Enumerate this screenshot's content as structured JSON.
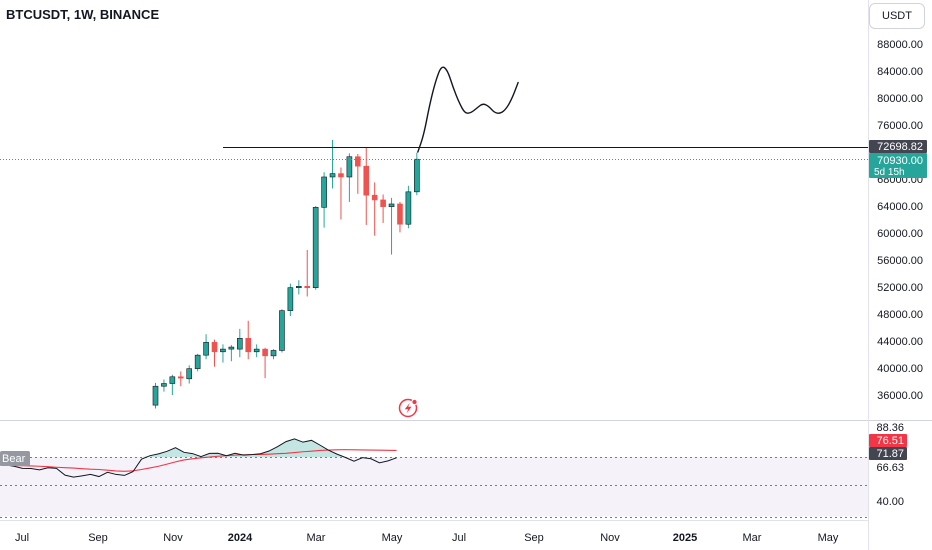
{
  "header": {
    "symbol": "BTCUSDT, 1W, BINANCE",
    "currency_button": "USDT"
  },
  "price_axis": {
    "ticks": [
      "88000.00",
      "84000.00",
      "80000.00",
      "76000.00",
      "68000.00",
      "64000.00",
      "60000.00",
      "56000.00",
      "52000.00",
      "48000.00",
      "44000.00",
      "40000.00",
      "36000.00"
    ]
  },
  "labels": {
    "level_line": "72698.82",
    "last_price": "70930.00",
    "countdown": "5d 15h"
  },
  "oscillator": {
    "pane_label": "Bear",
    "axis_ticks": [
      "88.36",
      "66.63",
      "40.00"
    ],
    "labels": [
      "76.51",
      "71.87"
    ]
  },
  "time_axis": {
    "labels": [
      "Jul",
      "Sep",
      "Nov",
      "2024",
      "Mar",
      "May",
      "Jul",
      "Sep",
      "Nov",
      "2025",
      "Mar",
      "May"
    ]
  },
  "colors": {
    "up": "#26a69a",
    "down": "#ef5350",
    "level_line": "#131722",
    "oscillator_line": "#131722",
    "oscillator_signal": "#f23645",
    "oscillator_band": "#7e57c2"
  },
  "chart_data": {
    "type": "candlestick",
    "symbol": "BTCUSDT",
    "interval": "1W",
    "exchange": "BINANCE",
    "ylim": [
      30000,
      90000
    ],
    "candles": [
      {
        "o": 34500,
        "h": 37800,
        "l": 34000,
        "c": 37300
      },
      {
        "o": 37300,
        "h": 38300,
        "l": 36500,
        "c": 37700
      },
      {
        "o": 37700,
        "h": 39000,
        "l": 36000,
        "c": 38700
      },
      {
        "o": 38700,
        "h": 39500,
        "l": 37300,
        "c": 38500
      },
      {
        "o": 38400,
        "h": 40400,
        "l": 37700,
        "c": 39900
      },
      {
        "o": 39900,
        "h": 42100,
        "l": 39500,
        "c": 41900
      },
      {
        "o": 41900,
        "h": 45000,
        "l": 41300,
        "c": 43800
      },
      {
        "o": 43800,
        "h": 44200,
        "l": 40200,
        "c": 42400
      },
      {
        "o": 42400,
        "h": 43500,
        "l": 40800,
        "c": 42800
      },
      {
        "o": 42800,
        "h": 43400,
        "l": 41000,
        "c": 43100
      },
      {
        "o": 42800,
        "h": 45800,
        "l": 41600,
        "c": 44400
      },
      {
        "o": 44400,
        "h": 47000,
        "l": 41300,
        "c": 42400
      },
      {
        "o": 42400,
        "h": 43500,
        "l": 41600,
        "c": 42800
      },
      {
        "o": 42800,
        "h": 43000,
        "l": 38500,
        "c": 41800
      },
      {
        "o": 41800,
        "h": 42800,
        "l": 41300,
        "c": 42600
      },
      {
        "o": 42600,
        "h": 48700,
        "l": 42300,
        "c": 48500
      },
      {
        "o": 48500,
        "h": 52500,
        "l": 47700,
        "c": 51900
      },
      {
        "o": 51900,
        "h": 53000,
        "l": 50900,
        "c": 52100
      },
      {
        "o": 52100,
        "h": 57500,
        "l": 50600,
        "c": 51900
      },
      {
        "o": 51900,
        "h": 64000,
        "l": 51600,
        "c": 63800
      },
      {
        "o": 63800,
        "h": 69000,
        "l": 60800,
        "c": 68300
      },
      {
        "o": 68300,
        "h": 73800,
        "l": 66600,
        "c": 68800
      },
      {
        "o": 68800,
        "h": 69700,
        "l": 62000,
        "c": 68300
      },
      {
        "o": 68300,
        "h": 71800,
        "l": 64600,
        "c": 71300
      },
      {
        "o": 71300,
        "h": 71700,
        "l": 65800,
        "c": 69900
      },
      {
        "o": 69900,
        "h": 72700,
        "l": 61200,
        "c": 65600
      },
      {
        "o": 65600,
        "h": 67500,
        "l": 59600,
        "c": 64900
      },
      {
        "o": 64900,
        "h": 65700,
        "l": 61500,
        "c": 63900
      },
      {
        "o": 63900,
        "h": 65200,
        "l": 56800,
        "c": 64300
      },
      {
        "o": 64300,
        "h": 64600,
        "l": 60100,
        "c": 61300
      },
      {
        "o": 61300,
        "h": 67000,
        "l": 60700,
        "c": 66100
      },
      {
        "o": 66100,
        "h": 71900,
        "l": 65600,
        "c": 70930
      }
    ],
    "level_line": 72698.82,
    "last_price": 70930.0,
    "projection_drawing": [
      [
        0,
        72000
      ],
      [
        1,
        74500
      ],
      [
        2,
        79000
      ],
      [
        3,
        82500
      ],
      [
        4,
        84800
      ],
      [
        5,
        84200
      ],
      [
        6,
        81500
      ],
      [
        7,
        79300
      ],
      [
        8,
        77700
      ],
      [
        9,
        77800
      ],
      [
        10,
        78500
      ],
      [
        11,
        79200
      ],
      [
        12,
        78800
      ],
      [
        13,
        77800
      ],
      [
        14,
        77700
      ],
      [
        15,
        78400
      ],
      [
        16,
        80000
      ],
      [
        17,
        82300
      ]
    ],
    "oscillator": {
      "ylim": [
        30,
        95
      ],
      "line": [
        66.5,
        66.3,
        65.3,
        63.8,
        63.7,
        62.7,
        64.2,
        63.8,
        59,
        57.6,
        58.5,
        59.5,
        58,
        61,
        59.5,
        58.8,
        61.5,
        70.3,
        72.8,
        74.1,
        75.9,
        78.5,
        75.2,
        74.3,
        72.2,
        74.4,
        74.5,
        72.8,
        74.5,
        73.2,
        73.6,
        74.2,
        76.1,
        79.2,
        82.8,
        84.7,
        82.4,
        83.7,
        80.3,
        76.7,
        73.9,
        71.5,
        68.9,
        71.4,
        70.6,
        67.7,
        69.1,
        71.3
      ],
      "signal": [
        66.3,
        66,
        65.8,
        65.7,
        65.5,
        65.3,
        65,
        64.6,
        64.3,
        64,
        63.6,
        63.2,
        63,
        62.5,
        62,
        61.7,
        62.1,
        63,
        64.1,
        65.3,
        66.8,
        68.4,
        69.8,
        70.6,
        71.3,
        71.8,
        72.4,
        72.8,
        73.2,
        73.4,
        73.6,
        73.7,
        73.9,
        74.2,
        74.5,
        75,
        75.6,
        76,
        76.5,
        76.8,
        77,
        77.1,
        77,
        76.9,
        76.8,
        76.7,
        76.6,
        76.51
      ],
      "upper_band": 71.87,
      "lower_band": 52
    }
  }
}
